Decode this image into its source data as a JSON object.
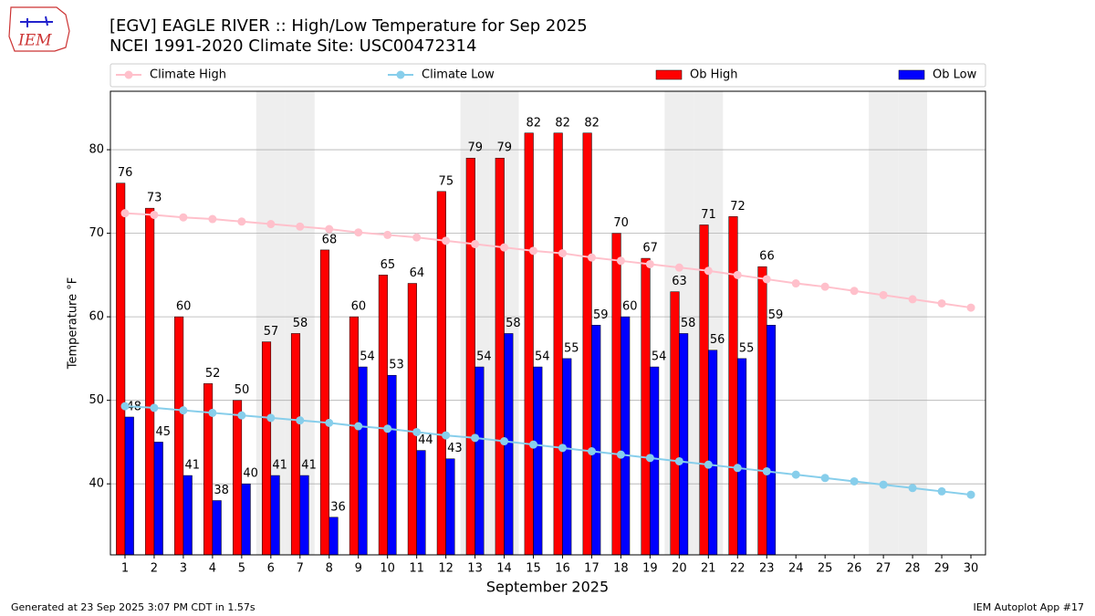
{
  "chart_data": {
    "type": "bar_line",
    "title": "[EGV] EAGLE RIVER :: High/Low Temperature for Sep 2025",
    "subtitle": "NCEI 1991-2020 Climate Site: USC00472314",
    "xlabel": "September 2025",
    "ylabel": "Temperature °F",
    "x": [
      1,
      2,
      3,
      4,
      5,
      6,
      7,
      8,
      9,
      10,
      11,
      12,
      13,
      14,
      15,
      16,
      17,
      18,
      19,
      20,
      21,
      22,
      23,
      24,
      25,
      26,
      27,
      28,
      29,
      30
    ],
    "xlim": [
      0.5,
      30.5
    ],
    "xticks": [
      1,
      2,
      3,
      4,
      5,
      6,
      7,
      8,
      9,
      10,
      11,
      12,
      13,
      14,
      15,
      16,
      17,
      18,
      19,
      20,
      21,
      22,
      23,
      24,
      25,
      26,
      27,
      28,
      29,
      30
    ],
    "ylim": [
      31.5,
      87
    ],
    "yticks": [
      40,
      50,
      60,
      70,
      80
    ],
    "grid": true,
    "shaded_days": [
      6,
      7,
      13,
      14,
      20,
      21,
      27,
      28
    ],
    "shade_color": "#eeeeee",
    "series": [
      {
        "name": "Climate High",
        "type": "line",
        "color": "#ffc0cb",
        "values": [
          72.4,
          72.2,
          71.9,
          71.7,
          71.4,
          71.1,
          70.8,
          70.5,
          70.1,
          69.8,
          69.5,
          69.1,
          68.7,
          68.3,
          67.9,
          67.6,
          67.1,
          66.7,
          66.3,
          65.9,
          65.5,
          65.0,
          64.5,
          64.0,
          63.6,
          63.1,
          62.6,
          62.1,
          61.6,
          61.1
        ]
      },
      {
        "name": "Climate Low",
        "type": "line",
        "color": "#87ceeb",
        "values": [
          49.3,
          49.1,
          48.8,
          48.5,
          48.2,
          47.9,
          47.6,
          47.3,
          46.9,
          46.6,
          46.2,
          45.8,
          45.5,
          45.1,
          44.7,
          44.3,
          43.9,
          43.5,
          43.1,
          42.7,
          42.3,
          41.9,
          41.5,
          41.1,
          40.7,
          40.3,
          39.9,
          39.5,
          39.1,
          38.7
        ]
      },
      {
        "name": "Ob High",
        "type": "bar",
        "color": "#ff0000",
        "values": [
          76,
          73,
          60,
          52,
          50,
          57,
          58,
          68,
          60,
          65,
          64,
          75,
          79,
          79,
          82,
          82,
          82,
          70,
          67,
          63,
          71,
          72,
          66,
          null,
          null,
          null,
          null,
          null,
          null,
          null
        ]
      },
      {
        "name": "Ob Low",
        "type": "bar",
        "color": "#0000ff",
        "values": [
          48,
          45,
          41,
          38,
          40,
          41,
          41,
          36,
          54,
          53,
          44,
          43,
          54,
          58,
          54,
          55,
          59,
          60,
          54,
          58,
          56,
          55,
          59,
          null,
          null,
          null,
          null,
          null,
          null,
          null
        ]
      }
    ]
  },
  "footer": {
    "left": "Generated at 23 Sep 2025 3:07 PM CDT in 1.57s",
    "right": "IEM Autoplot App #17"
  },
  "logo": "IEM"
}
